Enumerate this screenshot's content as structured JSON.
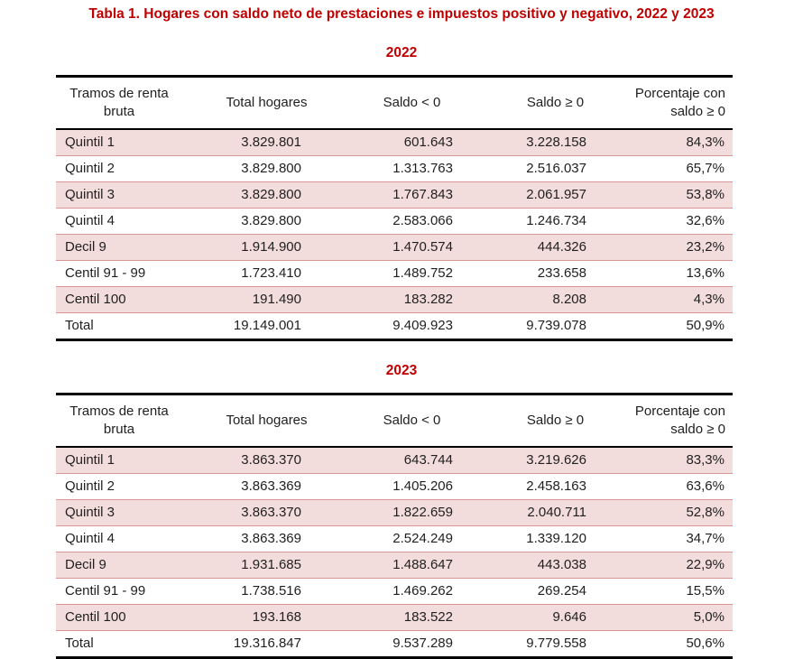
{
  "page": {
    "title": "Tabla 1. Hogares con saldo neto de prestaciones e impuestos positivo y negativo, 2022 y 2023",
    "accent_color": "#C00000",
    "row_shading_color": "#F3DDDC",
    "row_border_color": "#D99594",
    "table_frame_color": "#000000"
  },
  "columns": [
    "Tramos de renta bruta",
    "Total hogares",
    "Saldo < 0",
    "Saldo ≥ 0",
    "Porcentaje con saldo ≥ 0"
  ],
  "tables": [
    {
      "year": "2022",
      "rows": [
        {
          "cells": [
            "Quintil 1",
            "3.829.801",
            "601.643",
            "3.228.158",
            "84,3%"
          ]
        },
        {
          "cells": [
            "Quintil 2",
            "3.829.800",
            "1.313.763",
            "2.516.037",
            "65,7%"
          ]
        },
        {
          "cells": [
            "Quintil 3",
            "3.829.800",
            "1.767.843",
            "2.061.957",
            "53,8%"
          ]
        },
        {
          "cells": [
            "Quintil 4",
            "3.829.800",
            "2.583.066",
            "1.246.734",
            "32,6%"
          ]
        },
        {
          "cells": [
            "Decil 9",
            "1.914.900",
            "1.470.574",
            "444.326",
            "23,2%"
          ]
        },
        {
          "cells": [
            "Centil 91 - 99",
            "1.723.410",
            "1.489.752",
            "233.658",
            "13,6%"
          ]
        },
        {
          "cells": [
            "Centil 100",
            "191.490",
            "183.282",
            "8.208",
            "4,3%"
          ]
        },
        {
          "cells": [
            "Total",
            "19.149.001",
            "9.409.923",
            "9.739.078",
            "50,9%"
          ]
        }
      ]
    },
    {
      "year": "2023",
      "rows": [
        {
          "cells": [
            "Quintil 1",
            "3.863.370",
            "643.744",
            "3.219.626",
            "83,3%"
          ]
        },
        {
          "cells": [
            "Quintil 2",
            "3.863.369",
            "1.405.206",
            "2.458.163",
            "63,6%"
          ]
        },
        {
          "cells": [
            "Quintil 3",
            "3.863.370",
            "1.822.659",
            "2.040.711",
            "52,8%"
          ]
        },
        {
          "cells": [
            "Quintil 4",
            "3.863.369",
            "2.524.249",
            "1.339.120",
            "34,7%"
          ]
        },
        {
          "cells": [
            "Decil 9",
            "1.931.685",
            "1.488.647",
            "443.038",
            "22,9%"
          ]
        },
        {
          "cells": [
            "Centil 91 - 99",
            "1.738.516",
            "1.469.262",
            "269.254",
            "15,5%"
          ]
        },
        {
          "cells": [
            "Centil 100",
            "193.168",
            "183.522",
            "9.646",
            "5,0%"
          ]
        },
        {
          "cells": [
            "Total",
            "19.316.847",
            "9.537.289",
            "9.779.558",
            "50,6%"
          ]
        }
      ]
    }
  ]
}
